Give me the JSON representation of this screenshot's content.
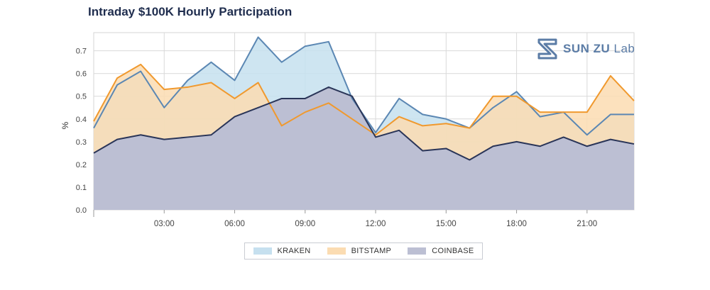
{
  "chart_data": {
    "type": "area",
    "title": "Intraday $100K Hourly Participation",
    "ylabel": "%",
    "xlabel": "",
    "ylim": [
      0,
      0.78
    ],
    "x_hours": [
      0,
      1,
      2,
      3,
      4,
      5,
      6,
      7,
      8,
      9,
      10,
      11,
      12,
      13,
      14,
      15,
      16,
      17,
      18,
      19,
      20,
      21,
      22,
      23
    ],
    "x_tick_labels": [
      "03:00",
      "06:00",
      "09:00",
      "12:00",
      "15:00",
      "18:00",
      "21:00"
    ],
    "x_tick_hours": [
      3,
      6,
      9,
      12,
      15,
      18,
      21
    ],
    "y_ticks": [
      0.0,
      0.1,
      0.2,
      0.3,
      0.4,
      0.5,
      0.6,
      0.7
    ],
    "y_tick_labels": [
      "0.0",
      "0.1",
      "0.2",
      "0.3",
      "0.4",
      "0.5",
      "0.6",
      "0.7"
    ],
    "grid": true,
    "legend_position": "bottom-center",
    "series": [
      {
        "name": "KRAKEN",
        "color": "#c6e0ef",
        "line": "#5b87b3",
        "values": [
          0.36,
          0.55,
          0.61,
          0.45,
          0.57,
          0.65,
          0.57,
          0.76,
          0.65,
          0.72,
          0.74,
          0.49,
          0.34,
          0.49,
          0.42,
          0.4,
          0.36,
          0.45,
          0.52,
          0.41,
          0.43,
          0.33,
          0.42,
          0.42
        ]
      },
      {
        "name": "BITSTAMP",
        "color": "#fbdcb2",
        "line": "#f0992e",
        "values": [
          0.39,
          0.58,
          0.64,
          0.53,
          0.54,
          0.56,
          0.49,
          0.56,
          0.37,
          0.43,
          0.47,
          0.4,
          0.33,
          0.41,
          0.37,
          0.38,
          0.36,
          0.5,
          0.5,
          0.43,
          0.43,
          0.43,
          0.59,
          0.48
        ]
      },
      {
        "name": "COINBASE",
        "color": "#bcbfd3",
        "line": "#2a3558",
        "values": [
          0.25,
          0.31,
          0.33,
          0.31,
          0.32,
          0.33,
          0.41,
          0.45,
          0.49,
          0.49,
          0.54,
          0.5,
          0.32,
          0.35,
          0.26,
          0.27,
          0.22,
          0.28,
          0.3,
          0.28,
          0.32,
          0.28,
          0.31,
          0.29
        ]
      }
    ]
  },
  "logo": {
    "brand": "SUN ZU",
    "suffix": "Lab"
  }
}
